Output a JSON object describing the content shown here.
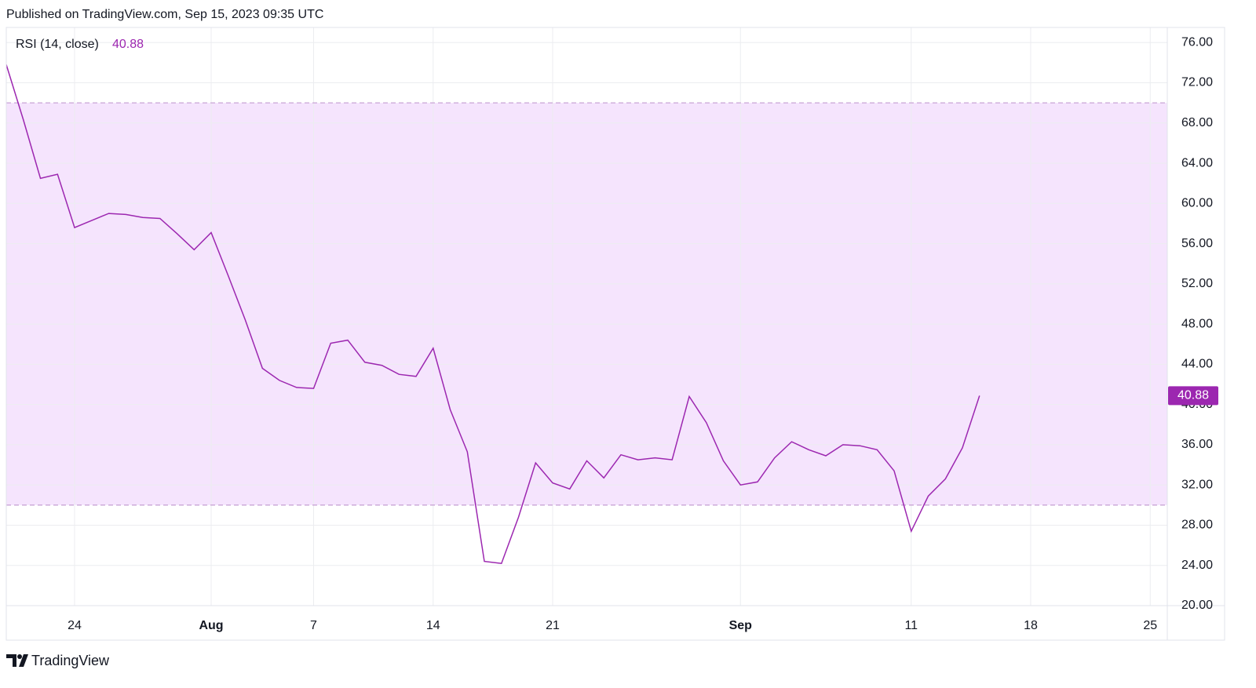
{
  "chart_data": {
    "type": "line",
    "title": "Published on TradingView.com, Sep 15, 2023 09:35 UTC",
    "footer": "TradingView",
    "series": [
      {
        "name": "RSI (14, close)",
        "color": "#9c27b0",
        "values": [
          73.8,
          68.3,
          62.5,
          62.9,
          57.6,
          58.3,
          59.0,
          58.9,
          58.6,
          58.5,
          57.0,
          55.4,
          57.1,
          52.8,
          48.4,
          43.6,
          42.4,
          41.7,
          41.6,
          46.1,
          46.4,
          44.2,
          43.9,
          43.0,
          42.8,
          45.6,
          39.5,
          35.3,
          24.4,
          24.2,
          28.8,
          34.2,
          32.2,
          31.6,
          34.4,
          32.7,
          35.0,
          34.5,
          34.7,
          34.5,
          40.8,
          38.2,
          34.4,
          32.0,
          32.3,
          34.7,
          36.3,
          35.5,
          34.9,
          36.0,
          35.9,
          35.5,
          33.4,
          27.4,
          30.9,
          32.6,
          35.7,
          40.88
        ]
      }
    ],
    "x": [
      "Jul 20",
      "Jul 21",
      "Jul 22",
      "Jul 23",
      "Jul 24",
      "Jul 25",
      "Jul 26",
      "Jul 27",
      "Jul 28",
      "Jul 29",
      "Jul 30",
      "Jul 31",
      "Aug 1",
      "Aug 2",
      "Aug 3",
      "Aug 4",
      "Aug 5",
      "Aug 6",
      "Aug 7",
      "Aug 8",
      "Aug 9",
      "Aug 10",
      "Aug 11",
      "Aug 12",
      "Aug 13",
      "Aug 14",
      "Aug 15",
      "Aug 16",
      "Aug 17",
      "Aug 18",
      "Aug 19",
      "Aug 20",
      "Aug 21",
      "Aug 22",
      "Aug 23",
      "Aug 24",
      "Aug 25",
      "Aug 26",
      "Aug 27",
      "Aug 28",
      "Aug 29",
      "Aug 30",
      "Aug 31",
      "Sep 1",
      "Sep 2",
      "Sep 3",
      "Sep 4",
      "Sep 5",
      "Sep 6",
      "Sep 7",
      "Sep 8",
      "Sep 9",
      "Sep 10",
      "Sep 11",
      "Sep 12",
      "Sep 13",
      "Sep 14",
      "Sep 15"
    ],
    "xlim": [
      "Jul 20",
      "Sep 26"
    ],
    "xticks": [
      {
        "value": "Jul 24",
        "label": "24"
      },
      {
        "value": "Aug 1",
        "label": "Aug"
      },
      {
        "value": "Aug 7",
        "label": "7"
      },
      {
        "value": "Aug 14",
        "label": "14"
      },
      {
        "value": "Aug 21",
        "label": "21"
      },
      {
        "value": "Sep 1",
        "label": "Sep"
      },
      {
        "value": "Sep 11",
        "label": "11"
      },
      {
        "value": "Sep 18",
        "label": "18"
      },
      {
        "value": "Sep 25",
        "label": "25"
      }
    ],
    "ylim": [
      20,
      77.5
    ],
    "yticks": [
      {
        "value": 20,
        "label": "20.00"
      },
      {
        "value": 24,
        "label": "24.00"
      },
      {
        "value": 28,
        "label": "28.00"
      },
      {
        "value": 32,
        "label": "32.00"
      },
      {
        "value": 36,
        "label": "36.00"
      },
      {
        "value": 40,
        "label": "40.00"
      },
      {
        "value": 44,
        "label": "44.00"
      },
      {
        "value": 48,
        "label": "48.00"
      },
      {
        "value": 52,
        "label": "52.00"
      },
      {
        "value": 56,
        "label": "56.00"
      },
      {
        "value": 60,
        "label": "60.00"
      },
      {
        "value": 64,
        "label": "64.00"
      },
      {
        "value": 68,
        "label": "68.00"
      },
      {
        "value": 72,
        "label": "72.00"
      },
      {
        "value": 76,
        "label": "76.00"
      }
    ],
    "bands": {
      "upper": 70,
      "lower": 30,
      "fill": "#f5e4fd",
      "line_color": "#c9a5d6"
    },
    "grid": true
  }
}
